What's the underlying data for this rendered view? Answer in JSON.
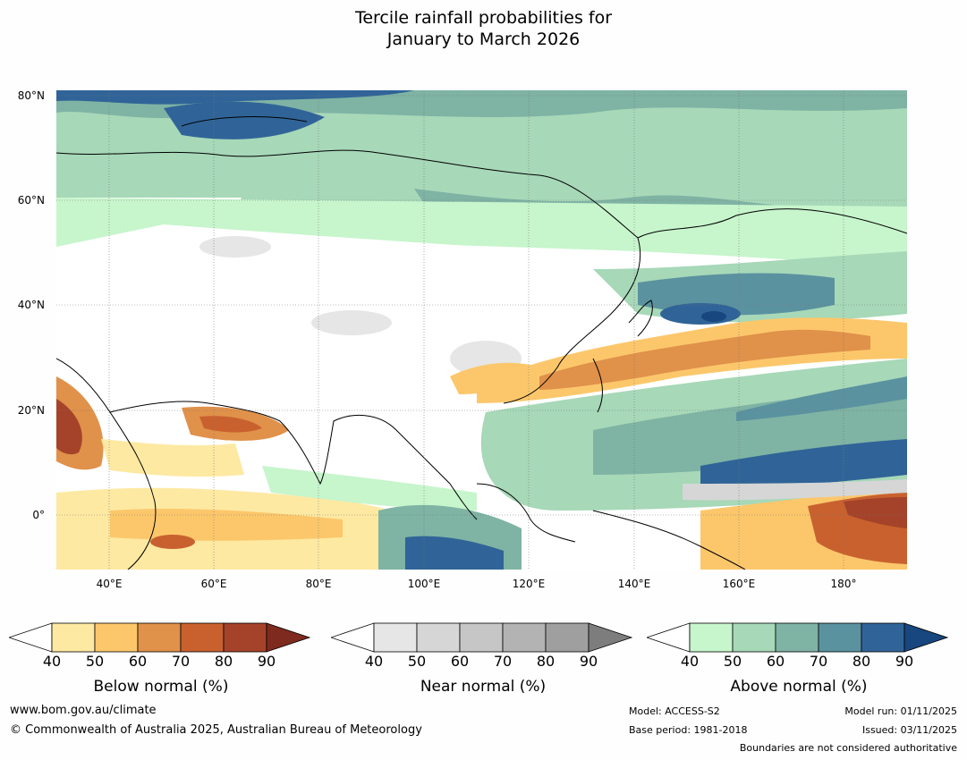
{
  "title": {
    "line1": "Tercile rainfall probabilities for",
    "line2": "January to March 2026"
  },
  "map": {
    "lat_labels": [
      "80°N",
      "60°N",
      "40°N",
      "20°N",
      "0°"
    ],
    "lon_labels": [
      "40°E",
      "60°E",
      "80°E",
      "100°E",
      "120°E",
      "140°E",
      "160°E",
      "180°"
    ]
  },
  "legends": {
    "below": {
      "title": "Below normal (%)",
      "ticks": [
        "40",
        "50",
        "60",
        "70",
        "80",
        "90"
      ],
      "colors": [
        "#fde9a2",
        "#fcc76b",
        "#e0914a",
        "#c9612f",
        "#a5432a",
        "#7e2a1e"
      ]
    },
    "near": {
      "title": "Near normal (%)",
      "ticks": [
        "40",
        "50",
        "60",
        "70",
        "80",
        "90"
      ],
      "colors": [
        "#e6e6e6",
        "#d6d6d6",
        "#c6c6c6",
        "#b3b3b3",
        "#9f9f9f",
        "#7d7d7d"
      ]
    },
    "above": {
      "title": "Above normal (%)",
      "ticks": [
        "40",
        "50",
        "60",
        "70",
        "80",
        "90"
      ],
      "colors": [
        "#c7f5cc",
        "#a7d8b8",
        "#7fb3a4",
        "#5b92a0",
        "#306498",
        "#18467e"
      ]
    }
  },
  "footer": {
    "website": "www.bom.gov.au/climate",
    "copyright": "© Commonwealth of Australia 2025, Australian Bureau of Meteorology",
    "model": "Model: ACCESS-S2",
    "base_period": "Base period: 1981-2018",
    "model_run": "Model run: 01/11/2025",
    "issued": "Issued: 03/11/2025",
    "boundaries_note": "Boundaries are not considered authoritative"
  }
}
